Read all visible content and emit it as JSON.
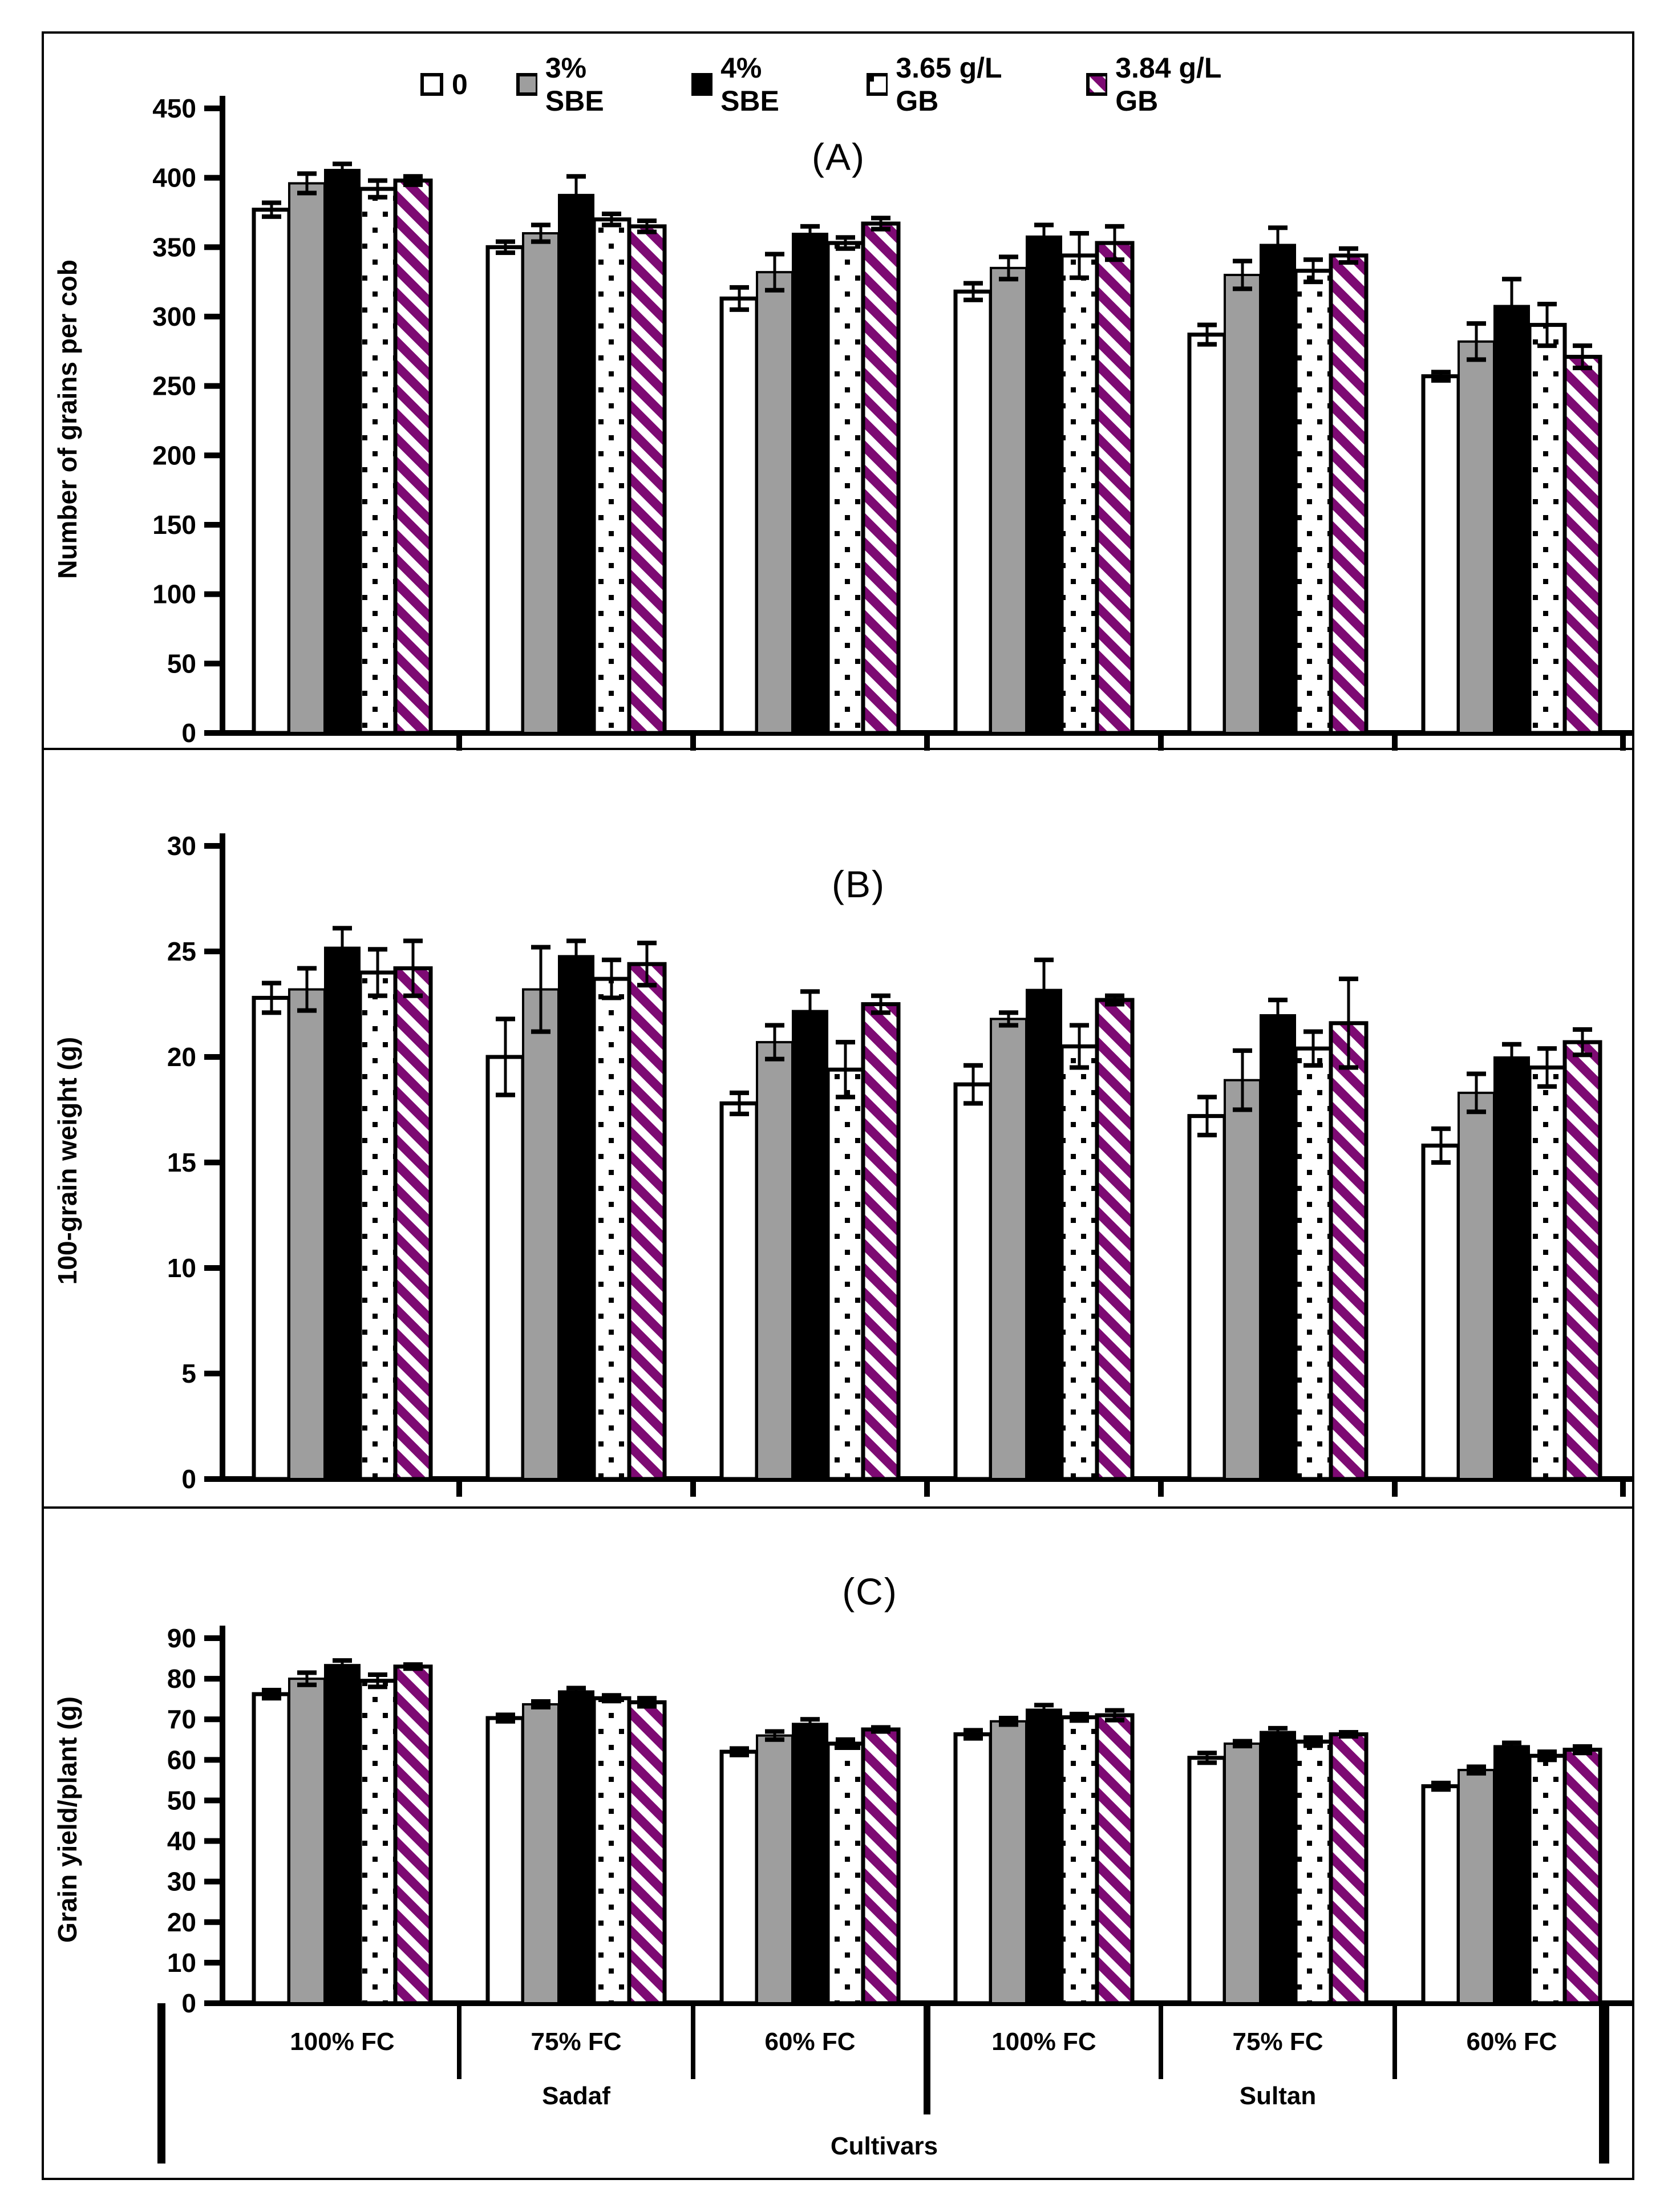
{
  "figure": {
    "legend": {
      "items": [
        {
          "label": "0",
          "fill": "white"
        },
        {
          "label": "3% SBE",
          "fill": "gray"
        },
        {
          "label": "4% SBE",
          "fill": "black"
        },
        {
          "label": "3.65 g/L GB",
          "fill": "dots"
        },
        {
          "label": "3.84 g/L GB",
          "fill": "stripes"
        }
      ]
    },
    "colors": {
      "gray": "#9e9e9e",
      "purple_stripe": "#7d0a73",
      "black": "#000000",
      "white": "#ffffff"
    },
    "bottom_axis": {
      "moisture_labels": [
        "100% FC",
        "75% FC",
        "60% FC",
        "100% FC",
        "75% FC",
        "60% FC"
      ],
      "cultivar_labels": [
        "Sadaf",
        "Sultan"
      ],
      "axis_title": "Cultivars"
    }
  },
  "chart_data": [
    {
      "id": "A",
      "type": "bar",
      "title": "(A)",
      "ylabel": "Number of grains per cob",
      "ylim": [
        0,
        450
      ],
      "yticks": [
        0,
        50,
        100,
        150,
        200,
        250,
        300,
        350,
        400,
        450
      ],
      "grid": false,
      "legend_position": "top",
      "categories": [
        "100% FC",
        "75% FC",
        "60% FC",
        "100% FC",
        "75% FC",
        "60% FC"
      ],
      "group_sections": [
        {
          "label": "Sadaf"
        },
        {
          "label": "Sultan"
        }
      ],
      "series": [
        {
          "name": "0",
          "fill": "white",
          "values": [
            377,
            350,
            313,
            318,
            287,
            257
          ],
          "errors": [
            5,
            4,
            8,
            6,
            7,
            3
          ]
        },
        {
          "name": "3% SBE",
          "fill": "gray",
          "values": [
            396,
            360,
            332,
            335,
            330,
            282
          ],
          "errors": [
            7,
            6,
            13,
            8,
            10,
            13
          ]
        },
        {
          "name": "4% SBE",
          "fill": "black",
          "values": [
            406,
            388,
            360,
            358,
            352,
            308
          ],
          "errors": [
            4,
            13,
            5,
            8,
            12,
            19
          ]
        },
        {
          "name": "3.65 g/L GB",
          "fill": "dots",
          "values": [
            392,
            370,
            353,
            344,
            333,
            294
          ],
          "errors": [
            6,
            4,
            4,
            16,
            8,
            15
          ]
        },
        {
          "name": "3.84 g/L GB",
          "fill": "stripes",
          "values": [
            398,
            365,
            367,
            353,
            344,
            271
          ],
          "errors": [
            3,
            4,
            4,
            12,
            5,
            8
          ]
        }
      ]
    },
    {
      "id": "B",
      "type": "bar",
      "title": "(B)",
      "ylabel": "100-grain weight (g)",
      "ylim": [
        0,
        30
      ],
      "yticks": [
        0,
        5,
        10,
        15,
        20,
        25,
        30
      ],
      "grid": false,
      "categories": [
        "100% FC",
        "75% FC",
        "60% FC",
        "100% FC",
        "75% FC",
        "60% FC"
      ],
      "group_sections": [
        {
          "label": "Sadaf"
        },
        {
          "label": "Sultan"
        }
      ],
      "series": [
        {
          "name": "0",
          "fill": "white",
          "values": [
            22.8,
            20.0,
            17.8,
            18.7,
            17.2,
            15.8
          ],
          "errors": [
            0.7,
            1.8,
            0.5,
            0.9,
            0.9,
            0.8
          ]
        },
        {
          "name": "3% SBE",
          "fill": "gray",
          "values": [
            23.2,
            23.2,
            20.7,
            21.8,
            18.9,
            18.3
          ],
          "errors": [
            1.0,
            2.0,
            0.8,
            0.3,
            1.4,
            0.9
          ]
        },
        {
          "name": "4% SBE",
          "fill": "black",
          "values": [
            25.2,
            24.8,
            22.2,
            23.2,
            22.0,
            20.0
          ],
          "errors": [
            0.9,
            0.7,
            0.9,
            1.4,
            0.7,
            0.6
          ]
        },
        {
          "name": "3.65 g/L GB",
          "fill": "dots",
          "values": [
            24.0,
            23.7,
            19.4,
            20.5,
            20.4,
            19.5
          ],
          "errors": [
            1.1,
            0.9,
            1.3,
            1.0,
            0.8,
            0.9
          ]
        },
        {
          "name": "3.84 g/L GB",
          "fill": "stripes",
          "values": [
            24.2,
            24.4,
            22.5,
            22.7,
            21.6,
            20.7
          ],
          "errors": [
            1.3,
            1.0,
            0.4,
            0.2,
            2.1,
            0.6
          ]
        }
      ]
    },
    {
      "id": "C",
      "type": "bar",
      "title": "(C)",
      "ylabel": "Grain yield/plant (g)",
      "ylim": [
        0,
        90
      ],
      "yticks": [
        0,
        10,
        20,
        30,
        40,
        50,
        60,
        70,
        80,
        90
      ],
      "grid": false,
      "categories": [
        "100% FC",
        "75% FC",
        "60% FC",
        "100% FC",
        "75% FC",
        "60% FC"
      ],
      "group_sections": [
        {
          "label": "Sadaf"
        },
        {
          "label": "Sultan"
        }
      ],
      "series": [
        {
          "name": "0",
          "fill": "white",
          "values": [
            76.2,
            70.3,
            62.0,
            66.3,
            60.5,
            53.5
          ],
          "errors": [
            1.0,
            0.8,
            0.8,
            1.0,
            1.2,
            0.8
          ]
        },
        {
          "name": "3% SBE",
          "fill": "gray",
          "values": [
            80.0,
            73.7,
            66.0,
            69.5,
            64.0,
            57.5
          ],
          "errors": [
            1.5,
            0.7,
            1.0,
            0.8,
            0.6,
            0.8
          ]
        },
        {
          "name": "4% SBE",
          "fill": "black",
          "values": [
            83.5,
            77.0,
            69.0,
            72.5,
            67.0,
            63.5
          ],
          "errors": [
            1.0,
            0.7,
            1.0,
            1.0,
            0.8,
            0.7
          ]
        },
        {
          "name": "3.65 g/L GB",
          "fill": "dots",
          "values": [
            79.5,
            75.2,
            64.0,
            70.5,
            64.5,
            61.0
          ],
          "errors": [
            1.5,
            0.7,
            1.0,
            0.8,
            1.0,
            1.0
          ]
        },
        {
          "name": "3.84 g/L GB",
          "fill": "stripes",
          "values": [
            83.0,
            74.2,
            67.5,
            71.0,
            66.3,
            62.5
          ],
          "errors": [
            0.5,
            1.0,
            0.5,
            1.2,
            0.5,
            0.8
          ]
        }
      ]
    }
  ]
}
